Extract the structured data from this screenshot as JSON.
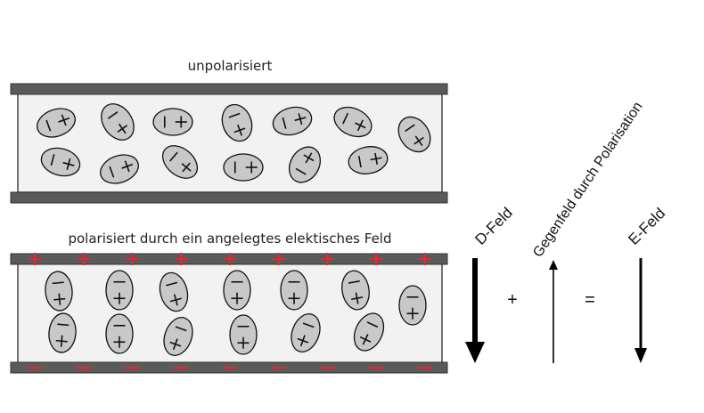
{
  "panels": {
    "top": {
      "title": "unpolarisiert",
      "molecule_count": 14,
      "plate_charges": "none"
    },
    "bottom": {
      "title": "polarisiert durch ein angelegtes elektisches Feld",
      "molecule_count": 14,
      "plate_charges": "top positive, bottom negative",
      "plus_sign": "+",
      "minus_sign": "−",
      "charge_marks_per_plate": 9
    }
  },
  "field_equation": {
    "d_field": {
      "label": "D-Feld",
      "direction": "down",
      "strength": "strong"
    },
    "operator_plus": "+",
    "counter_field": {
      "label": "Gegenfeld durch Polarisation",
      "direction": "up",
      "strength": "weak"
    },
    "operator_equals": "=",
    "e_field": {
      "label": "E-Feld",
      "direction": "down",
      "strength": "medium"
    }
  },
  "colors": {
    "plate": "#5a5a5a",
    "capacitor_fill": "#f2f2f2",
    "molecule_fill": "#c8c8c8",
    "charge_red": "#e8262b",
    "ink": "#111111"
  },
  "icons": [
    "capacitor-plate",
    "dipole-molecule",
    "field-arrow"
  ]
}
